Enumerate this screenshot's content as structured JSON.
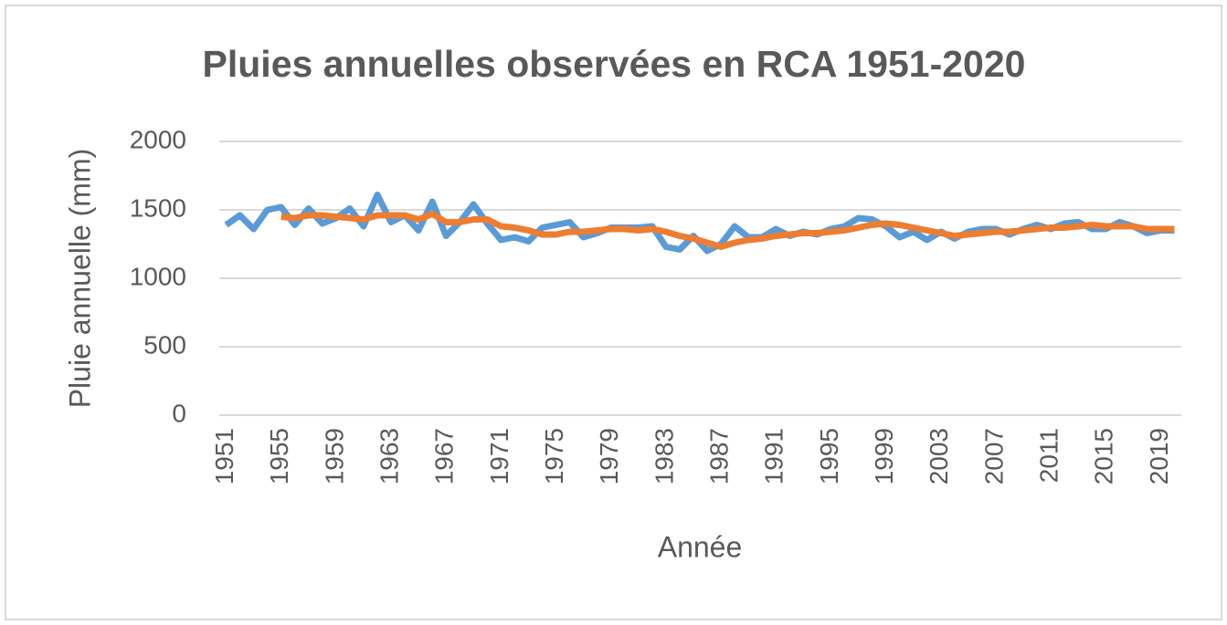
{
  "chart_data": {
    "type": "line",
    "title": "Pluies annuelles observées en RCA 1951-2020",
    "x_label": "Année",
    "y_label": "Pluie annuelle (mm)",
    "categories": [
      "1951",
      null,
      null,
      null,
      "1955",
      null,
      null,
      null,
      "1959",
      null,
      null,
      null,
      "1963",
      null,
      null,
      null,
      "1967",
      null,
      null,
      null,
      "1971",
      null,
      null,
      null,
      "1975",
      null,
      null,
      null,
      "1979",
      null,
      null,
      null,
      "1983",
      null,
      null,
      null,
      "1987",
      null,
      null,
      null,
      "1991",
      null,
      null,
      null,
      "1995",
      null,
      null,
      null,
      "1999",
      null,
      null,
      null,
      "2003",
      null,
      null,
      null,
      "2007",
      null,
      null,
      null,
      "2011",
      null,
      null,
      null,
      "2015",
      null,
      null,
      null,
      "2019",
      null
    ],
    "series": [
      {
        "color": "#5b9bd5",
        "values": [
          1390,
          1460,
          1360,
          1500,
          1520,
          1390,
          1510,
          1400,
          1440,
          1510,
          1380,
          1610,
          1410,
          1460,
          1350,
          1560,
          1310,
          1410,
          1540,
          1400,
          1280,
          1300,
          1270,
          1370,
          1390,
          1410,
          1300,
          1330,
          1370,
          1370,
          1370,
          1380,
          1230,
          1210,
          1310,
          1200,
          1250,
          1380,
          1300,
          1300,
          1360,
          1310,
          1340,
          1320,
          1360,
          1380,
          1440,
          1430,
          1380,
          1300,
          1340,
          1280,
          1340,
          1290,
          1340,
          1360,
          1360,
          1320,
          1360,
          1390,
          1360,
          1400,
          1410,
          1360,
          1360,
          1410,
          1380,
          1330,
          1350,
          1350
        ]
      },
      {
        "color": "#ed7d31",
        "values": [
          null,
          null,
          null,
          null,
          1450,
          1440,
          1460,
          1460,
          1450,
          1440,
          1430,
          1460,
          1460,
          1460,
          1430,
          1470,
          1410,
          1410,
          1430,
          1430,
          1380,
          1370,
          1350,
          1320,
          1320,
          1340,
          1340,
          1350,
          1360,
          1360,
          1350,
          1360,
          1340,
          1310,
          1290,
          1260,
          1230,
          1260,
          1280,
          1290,
          1310,
          1320,
          1330,
          1330,
          1340,
          1350,
          1370,
          1390,
          1400,
          1390,
          1370,
          1350,
          1330,
          1310,
          1320,
          1330,
          1340,
          1340,
          1350,
          1360,
          1370,
          1370,
          1380,
          1390,
          1380,
          1380,
          1380,
          1360,
          1360,
          1360
        ]
      }
    ],
    "ylim": [
      0,
      2000
    ],
    "yticks": [
      0,
      500,
      1000,
      1500,
      2000
    ],
    "grid": true
  }
}
